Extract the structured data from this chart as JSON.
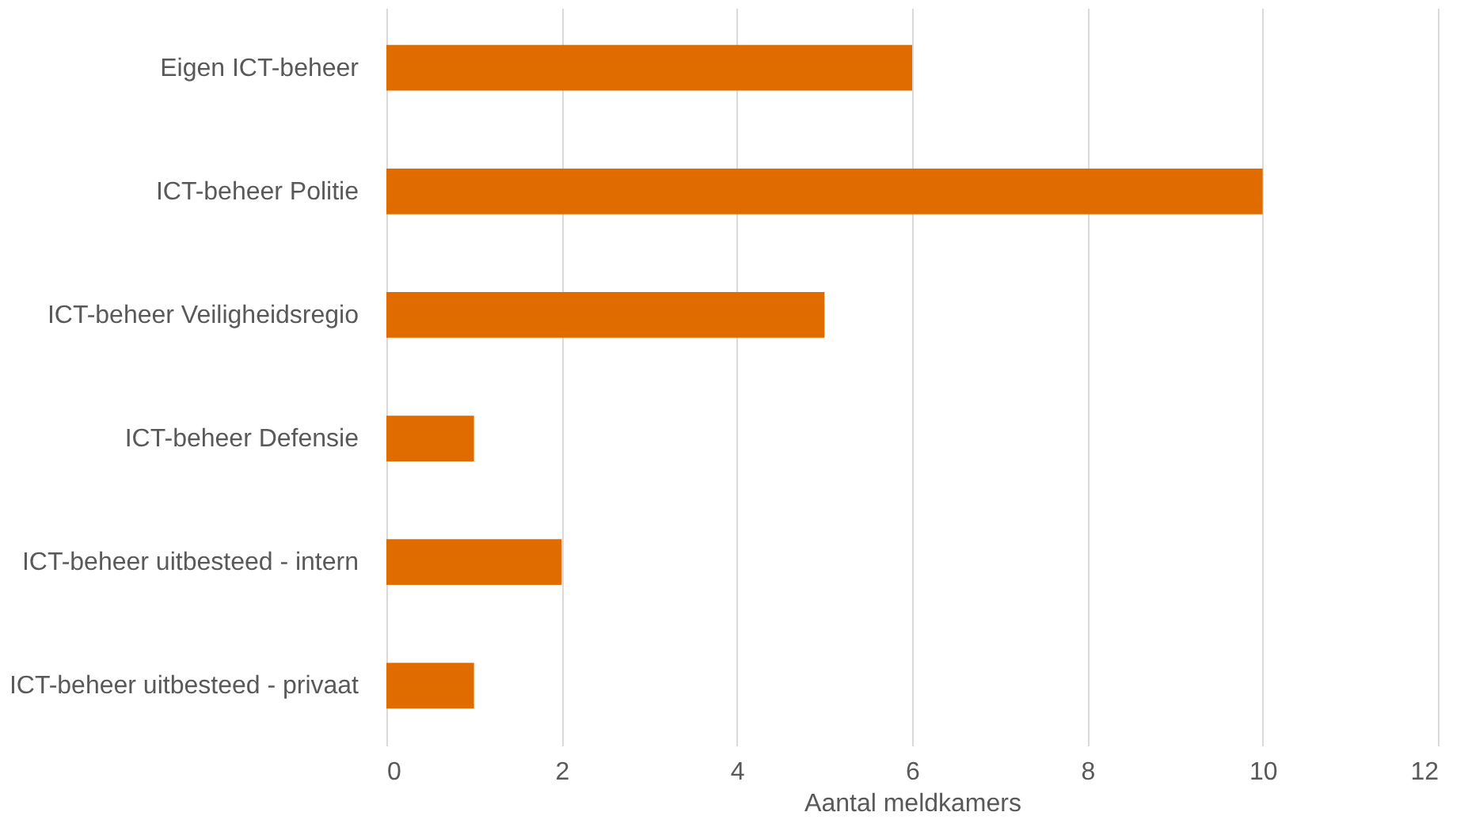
{
  "chart_data": {
    "type": "bar",
    "orientation": "horizontal",
    "xlabel": "Aantal meldkamers",
    "categories": [
      "Eigen ICT-beheer",
      "ICT-beheer Politie",
      "ICT-beheer Veiligheidsregio",
      "ICT-beheer Defensie",
      "ICT-beheer uitbesteed - intern",
      "ICT-beheer uitbesteed - privaat"
    ],
    "values": [
      6,
      10,
      5,
      1,
      2,
      1
    ],
    "color": "#e06c00",
    "xlim": [
      0,
      12
    ],
    "xticks": [
      0,
      2,
      4,
      6,
      8,
      10,
      12
    ],
    "grid": "x"
  }
}
